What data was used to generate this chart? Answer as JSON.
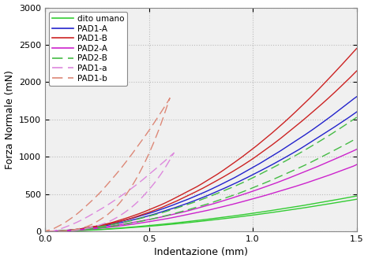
{
  "title": "",
  "xlabel": "Indentazione (mm)",
  "ylabel": "Forza Normale (mN)",
  "xlim": [
    0,
    1.5
  ],
  "ylim": [
    0,
    3000
  ],
  "yticks": [
    0,
    500,
    1000,
    1500,
    2000,
    2500,
    3000
  ],
  "xticks": [
    0,
    0.5,
    1.0,
    1.5
  ],
  "bg_color": "#f0f0f0",
  "grid_color": "#bbbbbb",
  "curves": {
    "dito_umano": {
      "label": "dito umano",
      "color": "#33cc33",
      "linestyle": "solid",
      "linewidth": 1.0
    },
    "PAD1_A": {
      "label": "PAD1-A",
      "color": "#2222cc",
      "linestyle": "solid",
      "linewidth": 1.0
    },
    "PAD1_B": {
      "label": "PAD1-B",
      "color": "#cc2222",
      "linestyle": "solid",
      "linewidth": 1.0
    },
    "PAD2_A": {
      "label": "PAD2-A",
      "color": "#cc22cc",
      "linestyle": "solid",
      "linewidth": 1.0
    },
    "PAD2_B": {
      "label": "PAD2-B",
      "color": "#44bb44",
      "linestyle": "dashed",
      "linewidth": 1.0
    },
    "PAD1_a": {
      "label": "PAD1-a",
      "color": "#dd88dd",
      "linestyle": "dashed",
      "linewidth": 1.0
    },
    "PAD1_b": {
      "label": "PAD1-b",
      "color": "#dd8877",
      "linestyle": "dashed",
      "linewidth": 1.0
    }
  }
}
